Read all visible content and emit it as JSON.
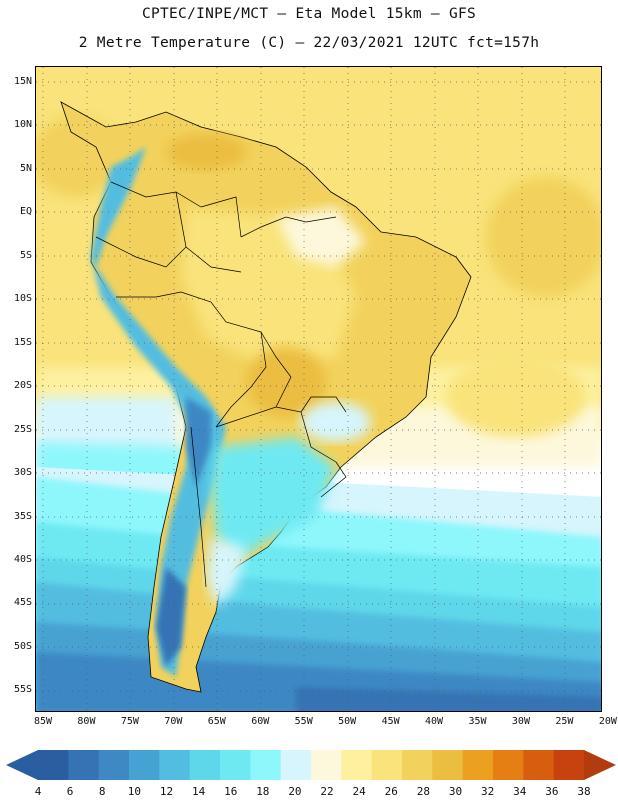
{
  "header": {
    "line1": "CPTEC/INPE/MCT –  Eta Model 15km – GFS",
    "line2": "2 Metre Temperature (C) – 22/03/2021 12UTC fct=157h"
  },
  "axes": {
    "lat_ticks": [
      "15N",
      "10N",
      "5N",
      "EQ",
      "5S",
      "10S",
      "15S",
      "20S",
      "25S",
      "30S",
      "35S",
      "40S",
      "45S",
      "50S",
      "55S"
    ],
    "lon_ticks": [
      "85W",
      "80W",
      "75W",
      "70W",
      "65W",
      "60W",
      "55W",
      "50W",
      "45W",
      "40W",
      "35W",
      "30W",
      "25W",
      "20W"
    ]
  },
  "legend": {
    "labels": [
      "4",
      "6",
      "8",
      "10",
      "12",
      "14",
      "16",
      "18",
      "20",
      "22",
      "24",
      "26",
      "28",
      "30",
      "32",
      "34",
      "36",
      "38"
    ],
    "colors": [
      "#2a5ea0",
      "#3573b4",
      "#3e88c4",
      "#46a2d2",
      "#52bde0",
      "#5ed7ea",
      "#6ee9f2",
      "#8ef7fc",
      "#d6f5fc",
      "#fdf8dc",
      "#fdf1a0",
      "#f9e37a",
      "#f2d25c",
      "#ebbd40",
      "#eba020",
      "#e57f14",
      "#d75e0e",
      "#c84210"
    ],
    "low_arrow_color": "#2a5ea0",
    "high_arrow_color": "#b23c10"
  },
  "map": {
    "projection": "lat-lon",
    "extent": {
      "lon": [
        -85,
        -20
      ],
      "lat": [
        -57.5,
        16
      ]
    },
    "grid": "dotted",
    "variable": "2 m temperature"
  }
}
